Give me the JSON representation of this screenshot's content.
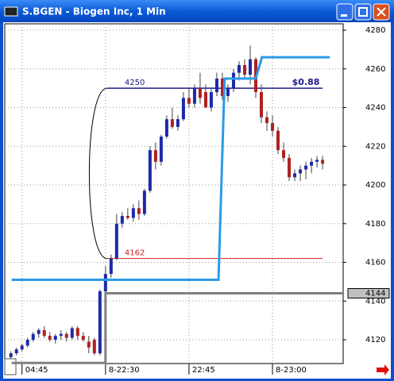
{
  "window": {
    "title": "S.BGEN - Biogen Inc, 1 Min"
  },
  "chart_data": {
    "type": "candlestick",
    "x": [
      -2,
      -1,
      0,
      1,
      2,
      3,
      4,
      5,
      6,
      7,
      8,
      9,
      10,
      11,
      12,
      13,
      14,
      15,
      16,
      17,
      18,
      19,
      20,
      21,
      22,
      23,
      24,
      25,
      26,
      27,
      28,
      29,
      30,
      31,
      32,
      33,
      34,
      35,
      36,
      37,
      38,
      39,
      40,
      41,
      42,
      43,
      44,
      45,
      46,
      47,
      48,
      49,
      50,
      51,
      52,
      53,
      54
    ],
    "open": [
      4111,
      4113,
      4115,
      4117,
      4120,
      4123,
      4125,
      4122,
      4120,
      4122,
      4123,
      4121,
      4126,
      4122,
      4119,
      4120,
      4113,
      4145,
      4154,
      4162,
      4180,
      4184,
      4183,
      4188,
      4185,
      4197,
      4218,
      4212,
      4225,
      4234,
      4230,
      4234,
      4245,
      4242,
      4250,
      4248,
      4240,
      4248,
      4255,
      4246,
      4250,
      4258,
      4262,
      4257,
      4265,
      4248,
      4235,
      4232,
      4228,
      4218,
      4214,
      4204,
      4206,
      4208,
      4210,
      4212,
      4213
    ],
    "high": [
      4114,
      4116,
      4118,
      4121,
      4124,
      4126,
      4127,
      4124,
      4123,
      4125,
      4124,
      4127,
      4127,
      4124,
      4122,
      4121,
      4146,
      4158,
      4164,
      4185,
      4186,
      4188,
      4190,
      4192,
      4198,
      4220,
      4222,
      4226,
      4236,
      4240,
      4236,
      4248,
      4250,
      4252,
      4258,
      4252,
      4250,
      4258,
      4258,
      4252,
      4260,
      4264,
      4265,
      4272,
      4266,
      4252,
      4238,
      4236,
      4230,
      4222,
      4216,
      4208,
      4210,
      4212,
      4214,
      4215,
      4215
    ],
    "low": [
      4110,
      4112,
      4114,
      4116,
      4119,
      4121,
      4121,
      4119,
      4118,
      4120,
      4119,
      4120,
      4120,
      4119,
      4113,
      4112,
      4112,
      4143,
      4152,
      4161,
      4178,
      4182,
      4181,
      4182,
      4184,
      4196,
      4208,
      4210,
      4224,
      4229,
      4228,
      4233,
      4240,
      4240,
      4242,
      4240,
      4238,
      4246,
      4244,
      4243,
      4248,
      4254,
      4255,
      4252,
      4245,
      4232,
      4228,
      4225,
      4216,
      4212,
      4202,
      4202,
      4202,
      4203,
      4206,
      4209,
      4208
    ],
    "close": [
      4113,
      4115,
      4117,
      4120,
      4123,
      4125,
      4122,
      4120,
      4122,
      4123,
      4121,
      4126,
      4122,
      4120,
      4116,
      4113,
      4145,
      4154,
      4162,
      4180,
      4184,
      4183,
      4188,
      4185,
      4197,
      4218,
      4212,
      4225,
      4234,
      4230,
      4234,
      4245,
      4242,
      4250,
      4245,
      4240,
      4248,
      4255,
      4246,
      4250,
      4258,
      4262,
      4257,
      4265,
      4248,
      4235,
      4232,
      4228,
      4218,
      4214,
      4204,
      4206,
      4208,
      4210,
      4212,
      4213,
      4211
    ],
    "up_color": "#1c2aa8",
    "down_color": "#b02020",
    "xlim": [
      -3.1,
      57.7
    ],
    "xticks": [
      {
        "value": 0,
        "label": "04:45"
      },
      {
        "value": 15,
        "label": "8-22:30"
      },
      {
        "value": 30,
        "label": "22:45"
      },
      {
        "value": 45,
        "label": "8-23:00"
      }
    ],
    "ylim": [
      4107.7,
      4283.3
    ],
    "yticks": [
      4120,
      4140,
      4160,
      4180,
      4200,
      4220,
      4240,
      4260,
      4280
    ],
    "grid": true,
    "lines": [
      {
        "color": "#2b9be6",
        "x": [
          -1.86,
          35.3,
          36.4,
          42,
          43.1,
          55.3
        ],
        "values": [
          4151,
          4151,
          4255,
          4255,
          4266,
          4266
        ]
      },
      {
        "color": "#808080",
        "x": [
          -1.86,
          15,
          15,
          57.7
        ],
        "values": [
          4108,
          4108,
          4144,
          4144
        ]
      }
    ],
    "levels": [
      {
        "value": 4250,
        "color": "#1a1a8c"
      },
      {
        "value": 4162,
        "color": "#d02020"
      }
    ],
    "annotation": "$0.88",
    "last_price": 4144
  }
}
